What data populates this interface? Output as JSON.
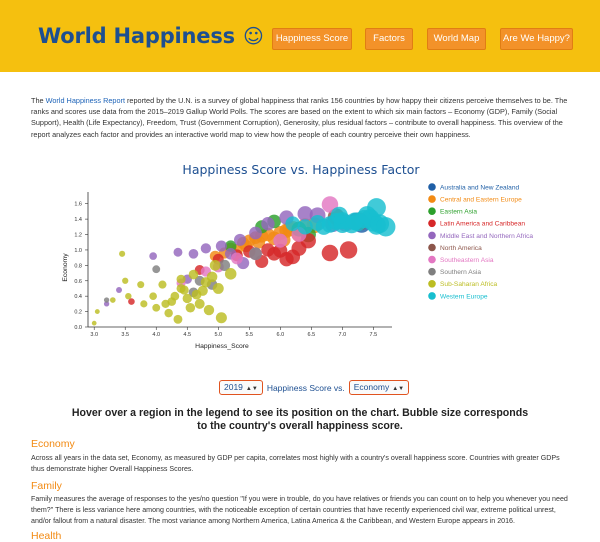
{
  "header": {
    "title": "World Happiness",
    "smiley": "☺",
    "nav": [
      "Happiness Score",
      "Factors",
      "World Map",
      "Are We Happy?"
    ]
  },
  "intro": {
    "prefix": "The ",
    "link": "World Happiness Report",
    "body": " reported by the U.N. is a survey of global happiness that ranks 156 countries by how happy their citizens perceive themselves to be. The ranks and scores use data from the 2015–2019 Gallup World Polls. The scores are based on the extent to which six main factors – Economy (GDP), Family (Social Support), Health (Life Expectancy), Freedom, Trust (Government Corruption), Generosity, plus residual factors – contribute to overall happiness. This overview of the report analyzes each factor and provides an interactive world map to view how the people of each country perceive their own happiness."
  },
  "chart_title": "Happiness Score vs. Happiness Factor",
  "controls": {
    "year": "2019",
    "y_label": "Happiness Score vs.",
    "factor": "Economy"
  },
  "hint": "Hover over a region in the legend to see its position on the chart. Bubble size corresponds to the country's overall happiness score.",
  "sections": [
    {
      "heading": "Economy",
      "text": "Across all years in the data set, Economy, as measured by GDP per capita, correlates most highly with a country's overall happiness score. Countries with greater GDPs thus demonstrate higher Overall Happiness Scores."
    },
    {
      "heading": "Family",
      "text": "Family measures the average of responses to the yes/no question \"If you were in trouble, do you have relatives or friends you can count on to help you whenever you need them?\" There is less variance here among countries, with the noticeable exception of certain countries that have recently experienced civil war, extreme political unrest, and/or fallout from a natural disaster. The most variance among Northern America, Latina America & the Caribbean, and Western Europe appears in 2016."
    },
    {
      "heading": "Health",
      "text": ""
    }
  ],
  "chart_data": {
    "type": "scatter",
    "title": "Happiness Score vs. Happiness Factor",
    "xlabel": "Happiness_Score",
    "ylabel": "Economy",
    "xlim": [
      2.9,
      7.8
    ],
    "ylim": [
      0,
      1.7
    ],
    "xticks": [
      3.0,
      3.5,
      4.0,
      4.5,
      5.0,
      5.5,
      6.0,
      6.5,
      7.0,
      7.5
    ],
    "yticks": [
      0.0,
      0.2,
      0.4,
      0.6,
      0.8,
      1.0,
      1.2,
      1.4,
      1.6
    ],
    "legend_position": "right",
    "series": [
      {
        "name": "Australia and New Zealand",
        "color": "#1f5fa6",
        "points": [
          [
            7.31,
            1.34
          ],
          [
            7.23,
            1.37
          ]
        ]
      },
      {
        "name": "Central and Eastern Europe",
        "color": "#f28a13",
        "points": [
          [
            5.2,
            1.02
          ],
          [
            5.4,
            1.09
          ],
          [
            5.5,
            1.12
          ],
          [
            5.6,
            1.16
          ],
          [
            5.7,
            1.18
          ],
          [
            5.8,
            1.2
          ],
          [
            5.9,
            1.15
          ],
          [
            6.0,
            1.22
          ],
          [
            6.1,
            1.25
          ],
          [
            6.2,
            1.28
          ],
          [
            6.3,
            1.2
          ],
          [
            5.3,
            1.0
          ],
          [
            5.45,
            1.05
          ],
          [
            5.65,
            1.1
          ],
          [
            6.05,
            1.13
          ],
          [
            6.4,
            1.31
          ],
          [
            4.95,
            0.92
          ],
          [
            5.1,
            0.96
          ],
          [
            6.15,
            1.27
          ],
          [
            6.55,
            1.32
          ]
        ]
      },
      {
        "name": "Eastern Asia",
        "color": "#2ca02c",
        "points": [
          [
            5.2,
            1.05
          ],
          [
            5.7,
            1.3
          ],
          [
            5.9,
            1.37
          ],
          [
            6.3,
            1.27
          ],
          [
            6.45,
            1.2
          ]
        ]
      },
      {
        "name": "Latin America and Caribbean",
        "color": "#d62728",
        "points": [
          [
            3.6,
            0.33
          ],
          [
            4.7,
            0.74
          ],
          [
            5.0,
            0.88
          ],
          [
            5.3,
            0.93
          ],
          [
            5.5,
            0.98
          ],
          [
            5.7,
            0.85
          ],
          [
            5.9,
            0.95
          ],
          [
            6.0,
            0.99
          ],
          [
            6.1,
            0.88
          ],
          [
            6.3,
            1.02
          ],
          [
            6.45,
            1.12
          ],
          [
            6.8,
            0.96
          ],
          [
            7.1,
            1.0
          ],
          [
            5.8,
            1.0
          ],
          [
            6.2,
            0.91
          ]
        ]
      },
      {
        "name": "Middle East and Northern Africa",
        "color": "#9467bd",
        "points": [
          [
            3.2,
            0.3
          ],
          [
            3.4,
            0.48
          ],
          [
            3.95,
            0.92
          ],
          [
            4.35,
            0.97
          ],
          [
            4.6,
            0.95
          ],
          [
            4.8,
            1.02
          ],
          [
            5.05,
            1.05
          ],
          [
            5.2,
            0.95
          ],
          [
            5.35,
            1.13
          ],
          [
            5.6,
            1.22
          ],
          [
            5.8,
            1.34
          ],
          [
            6.1,
            1.42
          ],
          [
            6.4,
            1.47
          ],
          [
            6.6,
            1.45
          ],
          [
            6.85,
            1.34
          ],
          [
            7.05,
            1.35
          ],
          [
            5.4,
            0.83
          ],
          [
            4.5,
            0.62
          ]
        ]
      },
      {
        "name": "North America",
        "color": "#8c564b",
        "points": [
          [
            6.9,
            1.43
          ],
          [
            7.28,
            1.37
          ]
        ]
      },
      {
        "name": "Southeastern Asia",
        "color": "#e377c2",
        "points": [
          [
            4.4,
            0.57
          ],
          [
            4.8,
            0.72
          ],
          [
            5.0,
            0.78
          ],
          [
            5.3,
            0.89
          ],
          [
            5.6,
            0.95
          ],
          [
            6.0,
            1.12
          ],
          [
            6.3,
            1.2
          ],
          [
            6.8,
            1.59
          ]
        ]
      },
      {
        "name": "Southern Asia",
        "color": "#7f7f7f",
        "points": [
          [
            3.2,
            0.35
          ],
          [
            4.0,
            0.75
          ],
          [
            4.6,
            0.45
          ],
          [
            4.9,
            0.55
          ],
          [
            5.1,
            0.8
          ],
          [
            5.6,
            0.95
          ],
          [
            4.7,
            0.6
          ]
        ]
      },
      {
        "name": "Sub-Saharan Africa",
        "color": "#bcbd22",
        "points": [
          [
            3.0,
            0.05
          ],
          [
            3.05,
            0.2
          ],
          [
            3.3,
            0.35
          ],
          [
            3.45,
            0.95
          ],
          [
            3.5,
            0.6
          ],
          [
            3.55,
            0.4
          ],
          [
            3.75,
            0.55
          ],
          [
            3.8,
            0.3
          ],
          [
            3.95,
            0.4
          ],
          [
            4.0,
            0.25
          ],
          [
            4.1,
            0.55
          ],
          [
            4.15,
            0.3
          ],
          [
            4.25,
            0.33
          ],
          [
            4.3,
            0.4
          ],
          [
            4.35,
            0.1
          ],
          [
            4.4,
            0.62
          ],
          [
            4.45,
            0.48
          ],
          [
            4.5,
            0.37
          ],
          [
            4.55,
            0.25
          ],
          [
            4.6,
            0.68
          ],
          [
            4.65,
            0.42
          ],
          [
            4.7,
            0.3
          ],
          [
            4.75,
            0.47
          ],
          [
            4.8,
            0.58
          ],
          [
            4.85,
            0.22
          ],
          [
            4.9,
            0.65
          ],
          [
            4.95,
            0.8
          ],
          [
            5.0,
            0.5
          ],
          [
            5.05,
            0.12
          ],
          [
            5.2,
            0.69
          ],
          [
            4.4,
            0.5
          ],
          [
            4.2,
            0.18
          ]
        ]
      },
      {
        "name": "Western Europe",
        "color": "#17becf",
        "points": [
          [
            6.2,
            1.34
          ],
          [
            6.4,
            1.3
          ],
          [
            6.6,
            1.35
          ],
          [
            6.7,
            1.3
          ],
          [
            6.8,
            1.33
          ],
          [
            6.9,
            1.37
          ],
          [
            7.0,
            1.38
          ],
          [
            7.15,
            1.33
          ],
          [
            7.25,
            1.36
          ],
          [
            7.35,
            1.4
          ],
          [
            7.45,
            1.41
          ],
          [
            7.5,
            1.36
          ],
          [
            7.55,
            1.32
          ],
          [
            7.6,
            1.34
          ],
          [
            7.7,
            1.3
          ],
          [
            7.0,
            1.33
          ],
          [
            6.95,
            1.45
          ],
          [
            7.2,
            1.37
          ],
          [
            7.4,
            1.45
          ],
          [
            7.55,
            1.55
          ]
        ]
      }
    ]
  }
}
